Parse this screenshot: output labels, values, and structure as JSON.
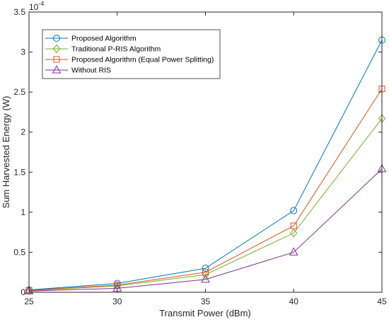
{
  "chart_data": {
    "type": "line",
    "xlabel": "Transmit Power (dBm)",
    "ylabel": "Sum Harvested Energy (W)",
    "y_exponent_base": "10",
    "y_exponent_power": "-4",
    "xlim": [
      25,
      45
    ],
    "ylim": [
      0,
      3.5
    ],
    "x_ticks": [
      "25",
      "30",
      "35",
      "40",
      "45"
    ],
    "y_ticks": [
      "0",
      "0.5",
      "1",
      "1.5",
      "2",
      "2.5",
      "3",
      "3.5"
    ],
    "y_tick_values": [
      0,
      0.5,
      1,
      1.5,
      2,
      2.5,
      3,
      3.5
    ],
    "x": [
      25,
      30,
      35,
      40,
      45
    ],
    "grid": false,
    "legend_position": "top-left",
    "series": [
      {
        "name": "Proposed Algorithm",
        "values": [
          0.03,
          0.11,
          0.3,
          1.02,
          3.15
        ],
        "color": "#0072BD",
        "marker": "circle"
      },
      {
        "name": "Traditional P-RIS Algorithm",
        "values": [
          0.02,
          0.08,
          0.22,
          0.74,
          2.17
        ],
        "color": "#77AC30",
        "marker": "diamond"
      },
      {
        "name": "Proposed Algorithm (Equal Power Splitting)",
        "values": [
          0.025,
          0.09,
          0.25,
          0.83,
          2.54
        ],
        "color": "#D95319",
        "marker": "square"
      },
      {
        "name": "Without RIS",
        "values": [
          0.015,
          0.05,
          0.16,
          0.5,
          1.54
        ],
        "color": "#7E2F8E",
        "marker": "triangle"
      }
    ]
  }
}
